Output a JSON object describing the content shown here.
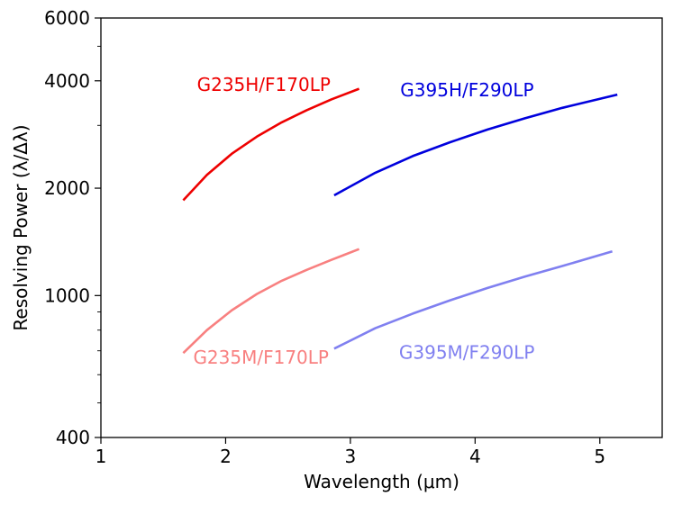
{
  "chart_data": {
    "type": "line",
    "title": "",
    "xlabel": "Wavelength (μm)",
    "ylabel": "Resolving Power (λ/Δλ)",
    "xlim": [
      1,
      5.5
    ],
    "ylim": [
      400,
      6000
    ],
    "yscale": "log",
    "x_ticks": [
      1,
      2,
      3,
      4,
      5
    ],
    "x_tick_labels": [
      "1",
      "2",
      "3",
      "4",
      "5"
    ],
    "y_ticks_major": [
      400,
      1000,
      2000,
      4000,
      6000
    ],
    "y_tick_labels": [
      "400",
      "1000",
      "2000",
      "4000",
      "6000"
    ],
    "y_ticks_minor": [
      500,
      600,
      700,
      800,
      900,
      3000,
      5000
    ],
    "grid": false,
    "legend": "none (labels placed beside each curve)",
    "series": [
      {
        "name": "G235H/F170LP",
        "color": "#ee0000",
        "opacity": 1.0,
        "x": [
          1.66,
          1.85,
          2.05,
          2.25,
          2.45,
          2.65,
          2.85,
          3.07
        ],
        "y": [
          1850,
          2180,
          2500,
          2790,
          3060,
          3310,
          3550,
          3800
        ]
      },
      {
        "name": "G395H/F290LP",
        "color": "#0000dd",
        "opacity": 1.0,
        "x": [
          2.87,
          3.2,
          3.5,
          3.8,
          4.1,
          4.4,
          4.7,
          5.14
        ],
        "y": [
          1910,
          2210,
          2460,
          2690,
          2920,
          3140,
          3360,
          3660
        ]
      },
      {
        "name": "G235M/F170LP",
        "color": "#f88080",
        "opacity": 1.0,
        "x": [
          1.66,
          1.85,
          2.05,
          2.25,
          2.45,
          2.65,
          2.85,
          3.07
        ],
        "y": [
          690,
          800,
          910,
          1010,
          1100,
          1180,
          1260,
          1350
        ]
      },
      {
        "name": "G395M/F290LP",
        "color": "#8080f0",
        "opacity": 1.0,
        "x": [
          2.87,
          3.2,
          3.5,
          3.8,
          4.1,
          4.4,
          4.7,
          5.1
        ],
        "y": [
          710,
          810,
          890,
          970,
          1050,
          1130,
          1210,
          1330
        ]
      }
    ],
    "annotations": [
      {
        "text": "G235H/F170LP",
        "series": "G235H/F170LP",
        "x": 1.77,
        "y": 3750
      },
      {
        "text": "G395H/F290LP",
        "series": "G395H/F290LP",
        "x": 3.4,
        "y": 3620
      },
      {
        "text": "G235M/F170LP",
        "series": "G235M/F170LP",
        "x": 1.74,
        "y": 645
      },
      {
        "text": "G395M/F290LP",
        "series": "G395M/F290LP",
        "x": 3.39,
        "y": 665
      }
    ]
  }
}
